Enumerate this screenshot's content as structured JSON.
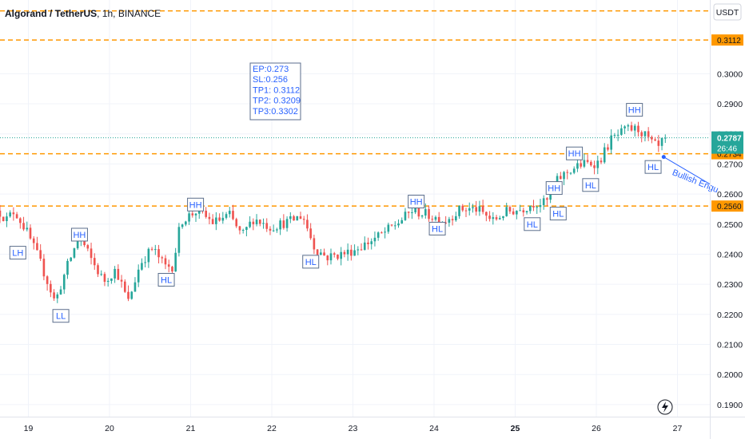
{
  "header": {
    "symbol": "Algorand / TetherUS",
    "interval": "1h",
    "exchange": "BINANCE"
  },
  "currency": "USDT",
  "colors": {
    "up": "#26a69a",
    "down": "#ef5350",
    "level": "#ff9800",
    "annotation": "#2962ff",
    "current_price_bg": "#26a69a"
  },
  "trade_info": [
    "EP:0.273",
    "SL:0.256",
    "TP1: 0.3112",
    "TP2: 0.3209",
    "TP3:0.3302"
  ],
  "current_price": {
    "value": "0.2787",
    "countdown": "26:46"
  },
  "pattern_label": "Bullish Engu",
  "chart_data": {
    "type": "candlestick",
    "title": "Algorand / TetherUS, 1h, BINANCE",
    "x_ticks": [
      {
        "label": "19",
        "t": 0.35,
        "bold": false
      },
      {
        "label": "20",
        "t": 1.35,
        "bold": false
      },
      {
        "label": "21",
        "t": 2.35,
        "bold": false
      },
      {
        "label": "22",
        "t": 3.35,
        "bold": false
      },
      {
        "label": "23",
        "t": 4.35,
        "bold": false
      },
      {
        "label": "24",
        "t": 5.35,
        "bold": false
      },
      {
        "label": "25",
        "t": 6.35,
        "bold": true
      },
      {
        "label": "26",
        "t": 7.35,
        "bold": false
      },
      {
        "label": "27",
        "t": 8.35,
        "bold": false
      }
    ],
    "y_ticks": [
      "0.3000",
      "0.2900",
      "0.2800",
      "0.2700",
      "0.2600",
      "0.2500",
      "0.2400",
      "0.2300",
      "0.2200",
      "0.2100",
      "0.2000",
      "0.1900"
    ],
    "ylim": [
      0.186,
      0.3245
    ],
    "levels": [
      {
        "price": 0.3112,
        "label": "0.3112"
      },
      {
        "price": 0.2734,
        "label": "0.2734"
      },
      {
        "price": 0.256,
        "label": "0.2560"
      },
      {
        "price": 0.3209,
        "label": ""
      }
    ],
    "current_price": 0.2787,
    "anchors": [
      [
        0.0,
        0.2545
      ],
      [
        0.1,
        0.2515
      ],
      [
        0.2,
        0.2545
      ],
      [
        0.35,
        0.2475
      ],
      [
        0.5,
        0.2385
      ],
      [
        0.7,
        0.224
      ],
      [
        0.85,
        0.236
      ],
      [
        1.0,
        0.246
      ],
      [
        1.15,
        0.238
      ],
      [
        1.3,
        0.231
      ],
      [
        1.45,
        0.235
      ],
      [
        1.6,
        0.224
      ],
      [
        1.75,
        0.237
      ],
      [
        1.9,
        0.242
      ],
      [
        2.05,
        0.236
      ],
      [
        2.15,
        0.236
      ],
      [
        2.25,
        0.251
      ],
      [
        2.45,
        0.2545
      ],
      [
        2.65,
        0.2505
      ],
      [
        2.85,
        0.253
      ],
      [
        3.0,
        0.246
      ],
      [
        3.15,
        0.252
      ],
      [
        3.35,
        0.249
      ],
      [
        3.6,
        0.251
      ],
      [
        3.75,
        0.253
      ],
      [
        3.9,
        0.242
      ],
      [
        4.05,
        0.239
      ],
      [
        4.3,
        0.2405
      ],
      [
        4.5,
        0.243
      ],
      [
        4.75,
        0.247
      ],
      [
        4.95,
        0.251
      ],
      [
        5.1,
        0.2545
      ],
      [
        5.3,
        0.253
      ],
      [
        5.5,
        0.251
      ],
      [
        5.7,
        0.255
      ],
      [
        5.9,
        0.255
      ],
      [
        6.1,
        0.251
      ],
      [
        6.25,
        0.254
      ],
      [
        6.45,
        0.255
      ],
      [
        6.6,
        0.257
      ],
      [
        6.75,
        0.257
      ],
      [
        6.9,
        0.265
      ],
      [
        7.05,
        0.268
      ],
      [
        7.2,
        0.27
      ],
      [
        7.4,
        0.2705
      ],
      [
        7.55,
        0.278
      ],
      [
        7.75,
        0.2815
      ],
      [
        7.9,
        0.2815
      ],
      [
        8.05,
        0.277
      ],
      [
        8.15,
        0.275
      ],
      [
        8.2,
        0.2787
      ]
    ],
    "markers": [
      {
        "label": "LH",
        "t": 0.22,
        "price": 0.2405
      },
      {
        "label": "HH",
        "t": 0.98,
        "price": 0.2465
      },
      {
        "label": "LL",
        "t": 0.75,
        "price": 0.2195
      },
      {
        "label": "HL",
        "t": 2.05,
        "price": 0.2315
      },
      {
        "label": "HH",
        "t": 2.41,
        "price": 0.2565
      },
      {
        "label": "HL",
        "t": 3.83,
        "price": 0.2375
      },
      {
        "label": "HH",
        "t": 5.13,
        "price": 0.2575
      },
      {
        "label": "HL",
        "t": 5.39,
        "price": 0.2485
      },
      {
        "label": "HL",
        "t": 6.56,
        "price": 0.25
      },
      {
        "label": "HH",
        "t": 6.83,
        "price": 0.262
      },
      {
        "label": "HL",
        "t": 6.88,
        "price": 0.2535
      },
      {
        "label": "HH",
        "t": 7.08,
        "price": 0.2735
      },
      {
        "label": "HL",
        "t": 7.28,
        "price": 0.263
      },
      {
        "label": "HH",
        "t": 7.82,
        "price": 0.288
      },
      {
        "label": "HL",
        "t": 8.05,
        "price": 0.269
      }
    ]
  }
}
